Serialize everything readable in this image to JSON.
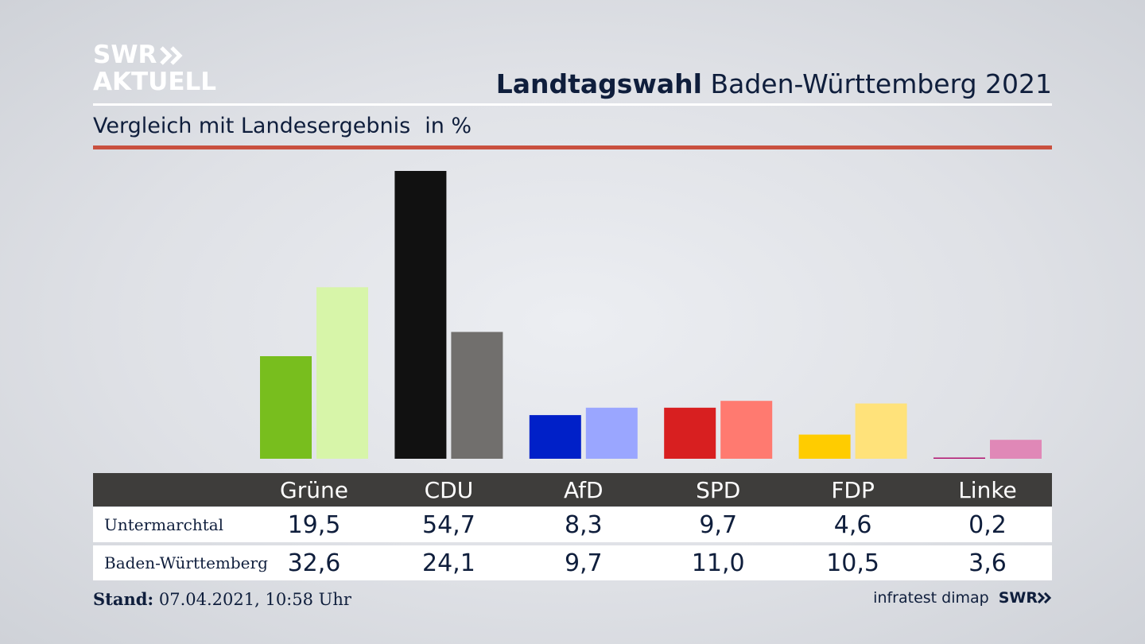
{
  "logo": {
    "line1": "SWR",
    "line2": "AKTUELL"
  },
  "header": {
    "title_bold": "Landtagswahl",
    "title_rest": "Baden-Württemberg 2021",
    "subtitle": "Vergleich mit Landesergebnis",
    "unit": "in %"
  },
  "chart_data": {
    "type": "bar",
    "categories": [
      "Grüne",
      "CDU",
      "AfD",
      "SPD",
      "FDP",
      "Linke"
    ],
    "series": [
      {
        "name": "Untermarchtal",
        "values": [
          19.5,
          54.7,
          8.3,
          9.7,
          4.6,
          0.2
        ],
        "display": [
          "19,5",
          "54,7",
          "8,3",
          "9,7",
          "4,6",
          "0,2"
        ],
        "colors": [
          "#78be1e",
          "#111111",
          "#0020c8",
          "#d81f20",
          "#ffcc00",
          "#b0136f"
        ]
      },
      {
        "name": "Baden-Württemberg",
        "values": [
          32.6,
          24.1,
          9.7,
          11.0,
          10.5,
          3.6
        ],
        "display": [
          "32,6",
          "24,1",
          "9,7",
          "11,0",
          "10,5",
          "3,6"
        ],
        "colors": [
          "#d7f5a9",
          "#716f6d",
          "#9aa6ff",
          "#ff7a70",
          "#ffe27a",
          "#e088b7"
        ]
      }
    ],
    "ylim": [
      0,
      55
    ],
    "grid": false,
    "legend": "table-below"
  },
  "footer": {
    "stand_label": "Stand:",
    "stand_value": "07.04.2021, 10:58 Uhr",
    "source": "infratest dimap",
    "brand": "SWR"
  }
}
